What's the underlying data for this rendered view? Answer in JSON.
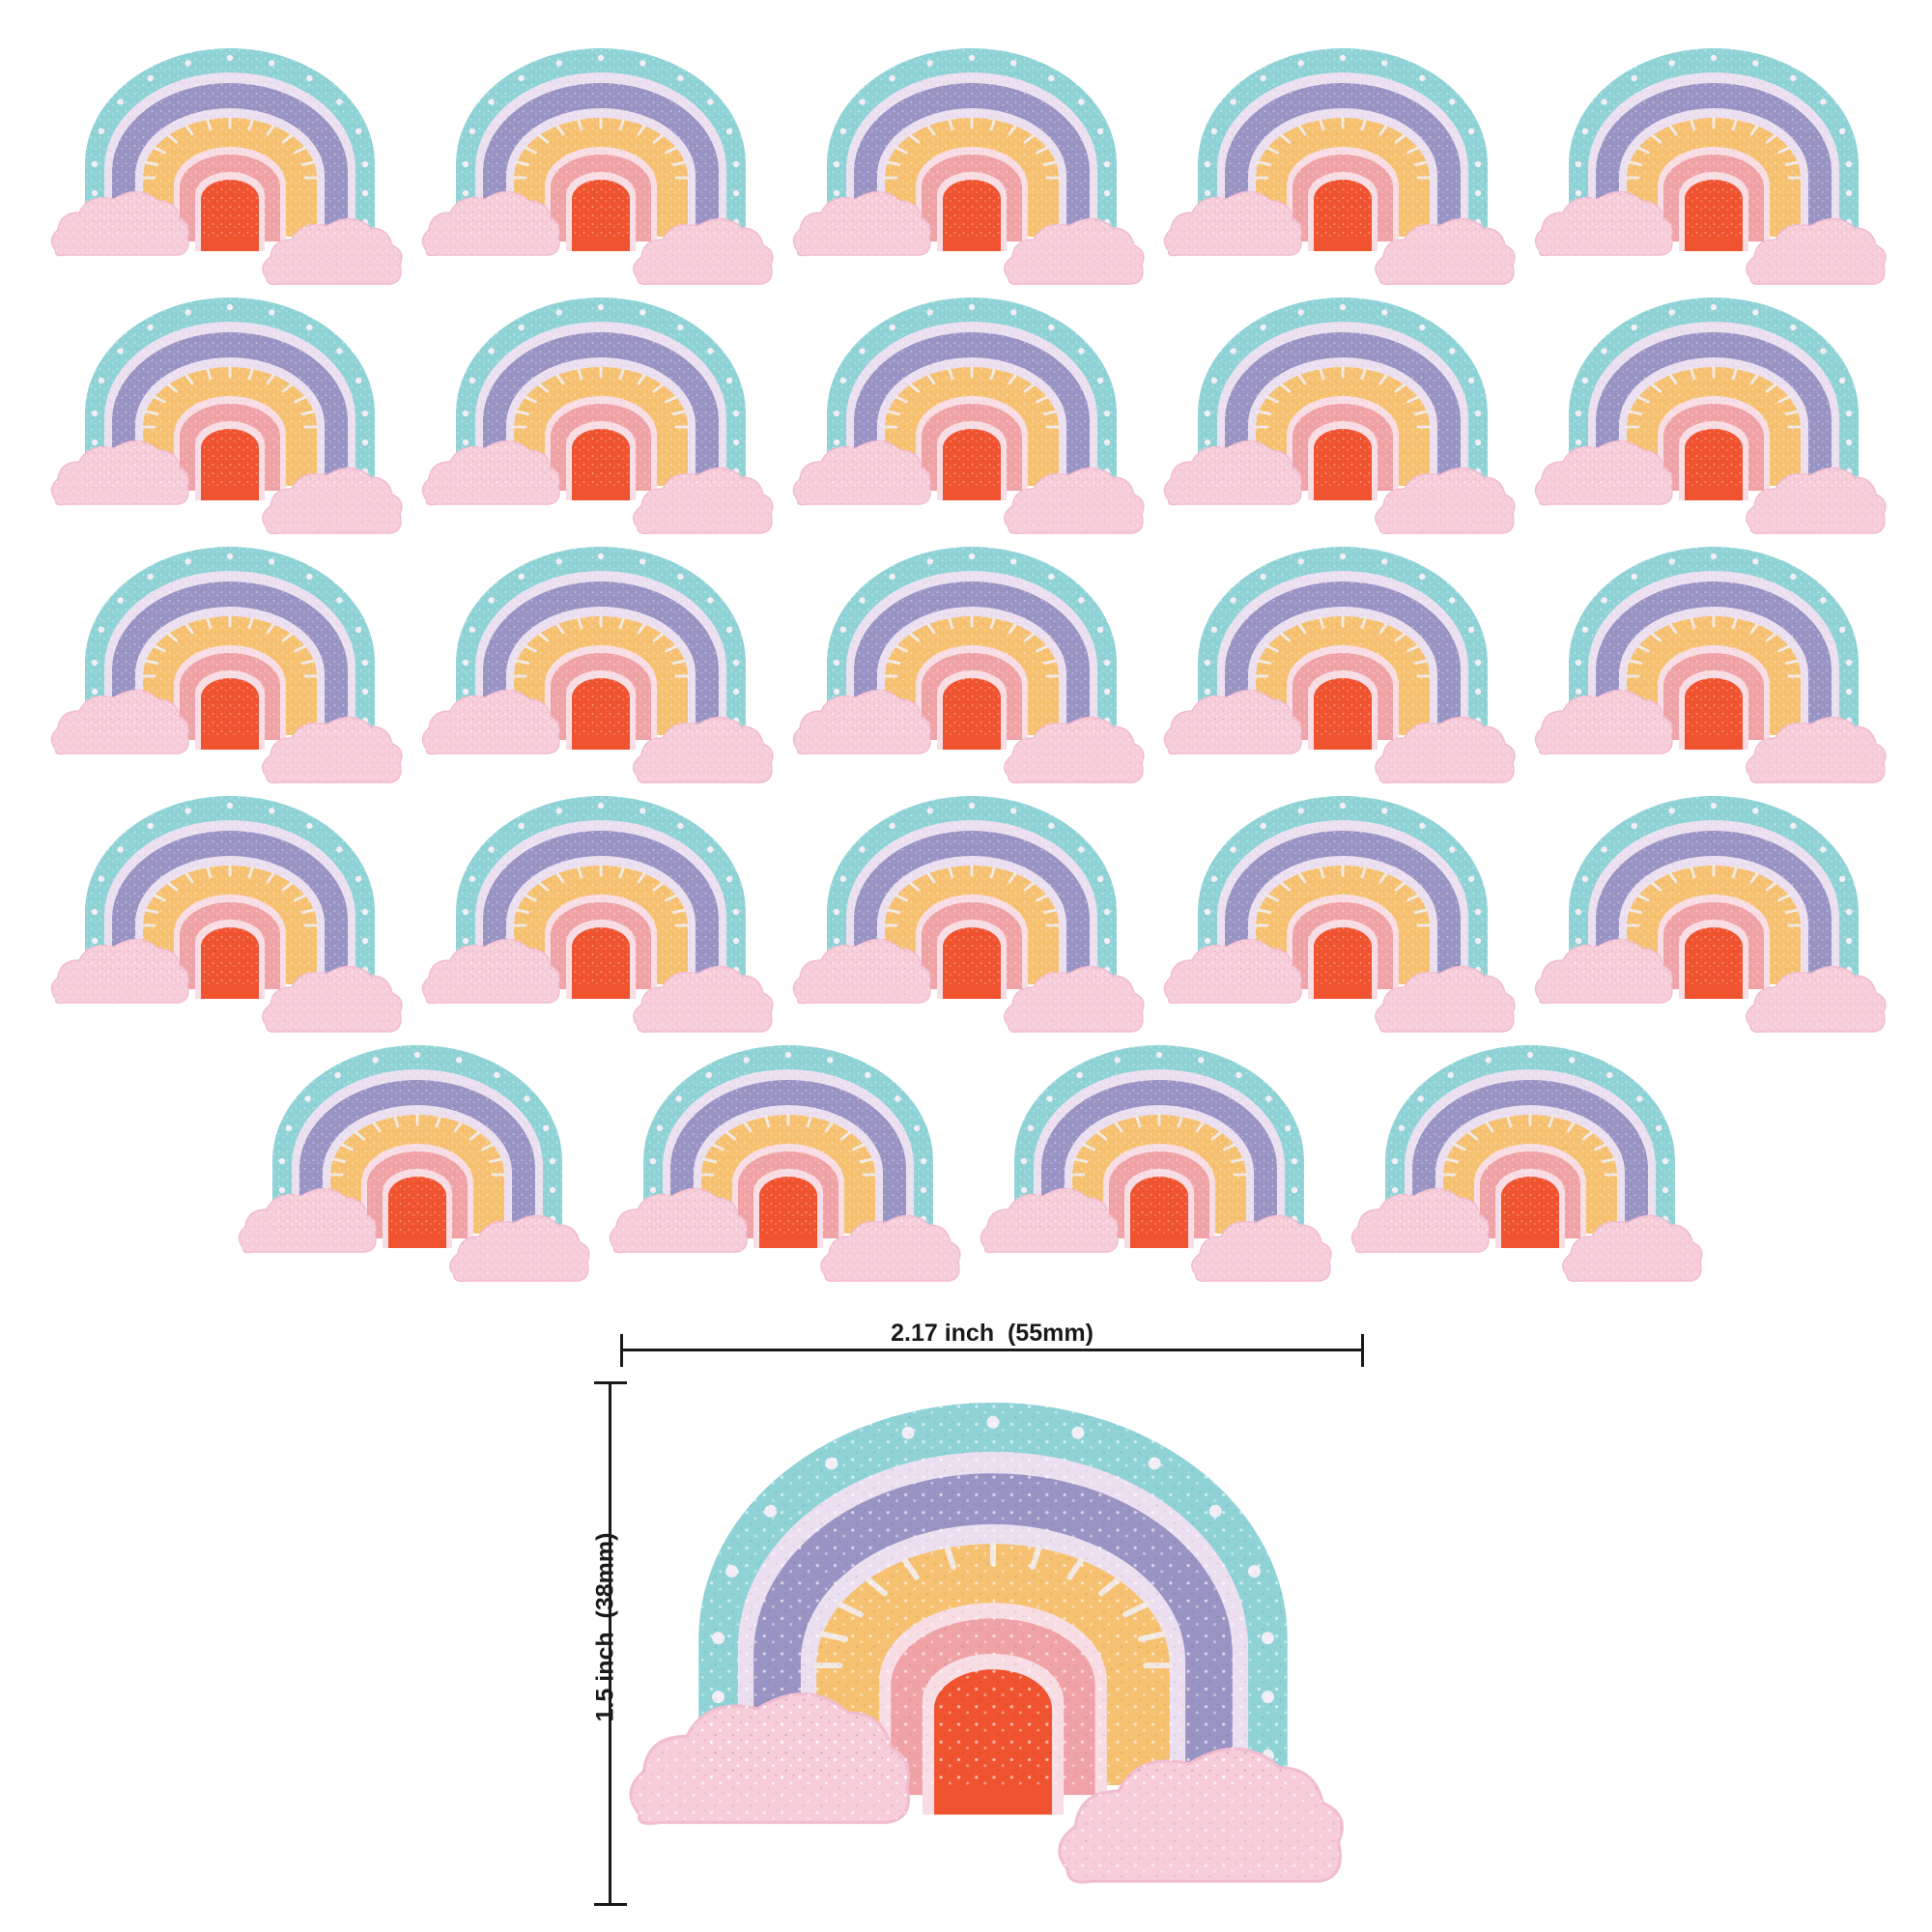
{
  "image": {
    "subject": "glitter-rainbow-with-clouds-sticker",
    "grid_rows": [
      5,
      5,
      5,
      5,
      4
    ],
    "sticker_count": 24
  },
  "colors": {
    "outer_band": "#8fd3d6",
    "outer_band_dots": "#f3eef5",
    "lavender_gap": "#ece0f0",
    "purple_band": "#9a94c4",
    "orange_band": "#f6c170",
    "orange_band_rays": "#f2e9e4",
    "pink_band": "#f0a3a6",
    "light_pink_gap": "#f9dde4",
    "red_center": "#f0532f",
    "clouds": "#f7cdda"
  },
  "dimensions": {
    "width_label": "2.17 inch  (55mm)",
    "height_label": "1.5 inch  (38mm)"
  }
}
